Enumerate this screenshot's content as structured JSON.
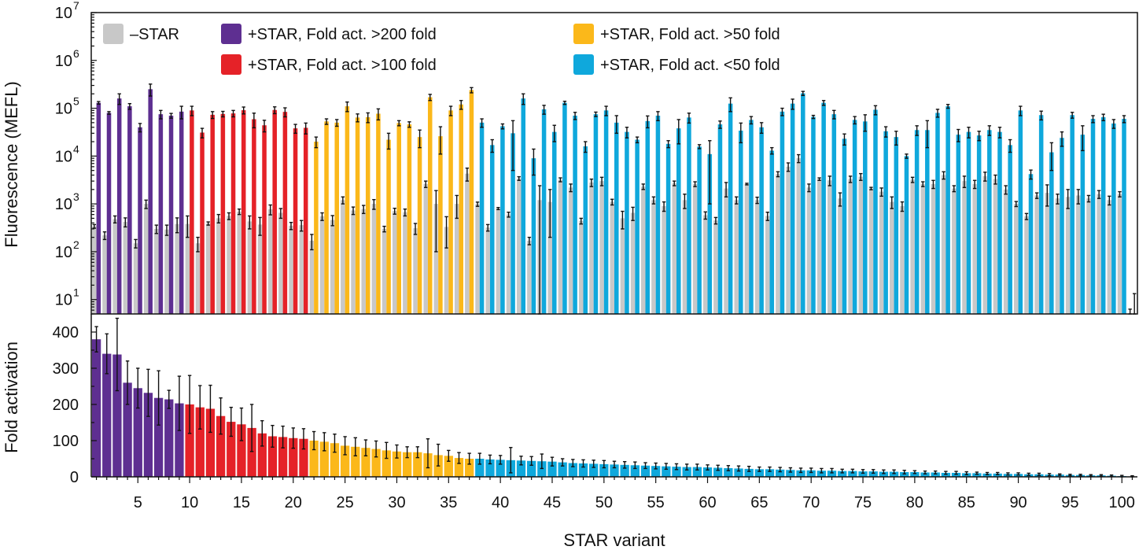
{
  "chart_data": [
    {
      "type": "bar",
      "panel": "top",
      "yscale": "log",
      "ylim": [
        5,
        10000000
      ],
      "ylabel": "Fluorescence (MEFL)",
      "yticks": [
        {
          "base": "10",
          "exp": "1",
          "value": 10
        },
        {
          "base": "10",
          "exp": "2",
          "value": 100
        },
        {
          "base": "10",
          "exp": "3",
          "value": 1000
        },
        {
          "base": "10",
          "exp": "4",
          "value": 10000
        },
        {
          "base": "10",
          "exp": "5",
          "value": 100000
        },
        {
          "base": "10",
          "exp": "6",
          "value": 1000000
        },
        {
          "base": "10",
          "exp": "7",
          "value": 10000000
        }
      ],
      "legend_position": "top",
      "legend": [
        {
          "label": "–STAR",
          "color": "#c8c8c8"
        },
        {
          "label": "+STAR, Fold act. >200 fold",
          "color": "#5e2f91"
        },
        {
          "label": "+STAR, Fold act. >100 fold",
          "color": "#e52228"
        },
        {
          "label": "+STAR, Fold act. >50 fold",
          "color": "#fbb81a"
        },
        {
          "label": "+STAR, Fold act. <50 fold",
          "color": "#0fa8dc"
        }
      ],
      "group_colors": [
        "#5e2f91",
        "#e52228",
        "#fbb81a",
        "#0fa8dc"
      ],
      "minus_color": "#c8c8c8",
      "x": [
        1,
        2,
        3,
        4,
        5,
        6,
        7,
        8,
        9,
        10,
        11,
        12,
        13,
        14,
        15,
        16,
        17,
        18,
        19,
        20,
        21,
        22,
        23,
        24,
        25,
        26,
        27,
        28,
        29,
        30,
        31,
        32,
        33,
        34,
        35,
        36,
        37,
        38,
        39,
        40,
        41,
        42,
        43,
        44,
        45,
        46,
        47,
        48,
        49,
        50,
        51,
        52,
        53,
        54,
        55,
        56,
        57,
        58,
        59,
        60,
        61,
        62,
        63,
        64,
        65,
        66,
        67,
        68,
        69,
        70,
        71,
        72,
        73,
        74,
        75,
        76,
        77,
        78,
        79,
        80,
        81,
        82,
        83,
        84,
        85,
        86,
        87,
        88,
        89,
        90,
        91,
        92,
        93,
        94,
        95,
        96,
        97,
        98,
        99,
        100,
        101
      ],
      "group": [
        0,
        0,
        0,
        0,
        0,
        0,
        0,
        0,
        0,
        1,
        1,
        1,
        1,
        1,
        1,
        1,
        1,
        1,
        1,
        1,
        1,
        2,
        2,
        2,
        2,
        2,
        2,
        2,
        2,
        2,
        2,
        2,
        2,
        2,
        2,
        2,
        2,
        3,
        3,
        3,
        3,
        3,
        3,
        3,
        3,
        3,
        3,
        3,
        3,
        3,
        3,
        3,
        3,
        3,
        3,
        3,
        3,
        3,
        3,
        3,
        3,
        3,
        3,
        3,
        3,
        3,
        3,
        3,
        3,
        3,
        3,
        3,
        3,
        3,
        3,
        3,
        3,
        3,
        3,
        3,
        3,
        3,
        3,
        3,
        3,
        3,
        3,
        3,
        3,
        3,
        3,
        3,
        3,
        3,
        3,
        3,
        3,
        3,
        3,
        3,
        3
      ],
      "series": [
        {
          "name": "–STAR",
          "values": [
            340,
            220,
            480,
            420,
            150,
            1000,
            300,
            290,
            380,
            380,
            150,
            390,
            500,
            560,
            690,
            430,
            370,
            770,
            650,
            350,
            360,
            170,
            550,
            460,
            1200,
            730,
            780,
            1000,
            300,
            710,
            670,
            310,
            2600,
            1000,
            330,
            1000,
            4300,
            990,
            320,
            800,
            600,
            3400,
            170,
            1200,
            1100,
            3200,
            2200,
            440,
            2800,
            3000,
            1100,
            500,
            650,
            2300,
            1200,
            900,
            2700,
            1200,
            2600,
            580,
            450,
            2100,
            1200,
            2600,
            1200,
            560,
            4200,
            6000,
            9000,
            2200,
            3300,
            3100,
            1300,
            3300,
            3700,
            2100,
            1800,
            1100,
            900,
            3200,
            2600,
            2600,
            4000,
            2100,
            3000,
            2600,
            3800,
            3300,
            2000,
            1000,
            550,
            1500,
            1700,
            1300,
            1400,
            1500,
            1300,
            1600,
            1200,
            1600,
            3.8
          ],
          "errors": [
            30,
            40,
            80,
            90,
            30,
            200,
            60,
            70,
            130,
            180,
            50,
            30,
            100,
            90,
            90,
            130,
            150,
            180,
            150,
            60,
            90,
            60,
            100,
            110,
            200,
            130,
            150,
            230,
            40,
            100,
            110,
            80,
            400,
            900,
            210,
            500,
            1300,
            100,
            50,
            40,
            70,
            300,
            30,
            1200,
            900,
            300,
            400,
            60,
            500,
            600,
            150,
            200,
            200,
            300,
            200,
            200,
            300,
            400,
            300,
            100,
            70,
            700,
            200,
            100,
            180,
            110,
            500,
            1200,
            1700,
            400,
            200,
            700,
            400,
            500,
            600,
            120,
            350,
            300,
            200,
            400,
            300,
            500,
            700,
            300,
            800,
            500,
            800,
            700,
            400,
            120,
            80,
            200,
            800,
            300,
            600,
            500,
            200,
            300,
            250,
            200,
            2.5
          ]
        },
        {
          "name": "+STAR",
          "values": [
            130000,
            80000,
            160000,
            110000,
            40000,
            250000,
            75000,
            70000,
            85000,
            90000,
            31000,
            73000,
            76000,
            78000,
            91000,
            59000,
            44000,
            92000,
            84000,
            38000,
            39000,
            20000,
            53000,
            50000,
            110000,
            64000,
            65000,
            77000,
            22000,
            49000,
            46000,
            25000,
            170000,
            26000,
            90000,
            120000,
            240000,
            50000,
            17000,
            42000,
            30000,
            160000,
            9000,
            95000,
            32000,
            130000,
            70000,
            16000,
            75000,
            90000,
            50000,
            32000,
            22000,
            54000,
            70000,
            18000,
            38000,
            64000,
            15800,
            11000,
            46000,
            125000,
            34000,
            57000,
            40000,
            13000,
            85000,
            125000,
            205000,
            66000,
            130000,
            75000,
            23000,
            57000,
            53000,
            93000,
            33000,
            25000,
            10000,
            35000,
            35000,
            80000,
            110000,
            28000,
            32000,
            27000,
            35000,
            32000,
            17000,
            90000,
            4200,
            72000,
            12000,
            24000,
            72000,
            28000,
            60000,
            65000,
            48000,
            60000,
            3.3
          ],
          "errors": [
            8000,
            5000,
            40000,
            15000,
            8000,
            70000,
            15000,
            8000,
            25000,
            20000,
            7000,
            12000,
            10000,
            12000,
            15000,
            20000,
            12000,
            15000,
            18000,
            8000,
            10000,
            5000,
            7000,
            8000,
            25000,
            12000,
            15000,
            20000,
            8000,
            6000,
            6000,
            10000,
            25000,
            15000,
            20000,
            25000,
            30000,
            10000,
            5000,
            5000,
            25000,
            40000,
            5000,
            20000,
            12000,
            10000,
            12000,
            4000,
            8000,
            20000,
            20000,
            8000,
            3000,
            15000,
            15000,
            3000,
            20000,
            15000,
            1500,
            10000,
            8000,
            40000,
            15000,
            10000,
            10000,
            2000,
            15000,
            30000,
            20000,
            5000,
            15000,
            15000,
            6000,
            10000,
            20000,
            20000,
            8000,
            8000,
            1000,
            8000,
            20000,
            15000,
            10000,
            8000,
            8000,
            6000,
            8000,
            8000,
            5000,
            20000,
            900,
            15000,
            7000,
            8000,
            10000,
            15000,
            10000,
            10000,
            10000,
            10000,
            10
          ]
        }
      ]
    },
    {
      "type": "bar",
      "panel": "bottom",
      "ylabel": "Fold activation",
      "xlabel": "STAR variant",
      "ylim": [
        0,
        450
      ],
      "yticks": [
        "0",
        "100",
        "200",
        "300",
        "400"
      ],
      "xticks": [
        "5",
        "10",
        "15",
        "20",
        "25",
        "30",
        "35",
        "40",
        "45",
        "50",
        "55",
        "60",
        "65",
        "70",
        "75",
        "80",
        "85",
        "90",
        "95",
        "100"
      ],
      "x": [
        1,
        2,
        3,
        4,
        5,
        6,
        7,
        8,
        9,
        10,
        11,
        12,
        13,
        14,
        15,
        16,
        17,
        18,
        19,
        20,
        21,
        22,
        23,
        24,
        25,
        26,
        27,
        28,
        29,
        30,
        31,
        32,
        33,
        34,
        35,
        36,
        37,
        38,
        39,
        40,
        41,
        42,
        43,
        44,
        45,
        46,
        47,
        48,
        49,
        50,
        51,
        52,
        53,
        54,
        55,
        56,
        57,
        58,
        59,
        60,
        61,
        62,
        63,
        64,
        65,
        66,
        67,
        68,
        69,
        70,
        71,
        72,
        73,
        74,
        75,
        76,
        77,
        78,
        79,
        80,
        81,
        82,
        83,
        84,
        85,
        86,
        87,
        88,
        89,
        90,
        91,
        92,
        93,
        94,
        95,
        96,
        97,
        98,
        99,
        100,
        101
      ],
      "group": [
        0,
        0,
        0,
        0,
        0,
        0,
        0,
        0,
        0,
        1,
        1,
        1,
        1,
        1,
        1,
        1,
        1,
        1,
        1,
        1,
        1,
        2,
        2,
        2,
        2,
        2,
        2,
        2,
        2,
        2,
        2,
        2,
        2,
        2,
        2,
        2,
        2,
        3,
        3,
        3,
        3,
        3,
        3,
        3,
        3,
        3,
        3,
        3,
        3,
        3,
        3,
        3,
        3,
        3,
        3,
        3,
        3,
        3,
        3,
        3,
        3,
        3,
        3,
        3,
        3,
        3,
        3,
        3,
        3,
        3,
        3,
        3,
        3,
        3,
        3,
        3,
        3,
        3,
        3,
        3,
        3,
        3,
        3,
        3,
        3,
        3,
        3,
        3,
        3,
        3,
        3,
        3,
        3,
        3,
        3,
        3,
        3,
        3,
        3,
        3,
        3
      ],
      "values": [
        380,
        340,
        338,
        260,
        245,
        232,
        218,
        214,
        203,
        200,
        192,
        188,
        168,
        152,
        145,
        135,
        120,
        112,
        110,
        107,
        105,
        100,
        97,
        93,
        86,
        83,
        80,
        77,
        73,
        70,
        68,
        68,
        65,
        60,
        58,
        52,
        50,
        50,
        48,
        47,
        46,
        45,
        44,
        43,
        42,
        40,
        38,
        37,
        36,
        35,
        34,
        33,
        32,
        31,
        30,
        29,
        28,
        27,
        27,
        26,
        25,
        24,
        23,
        22,
        21,
        21,
        20,
        19,
        18,
        18,
        17,
        17,
        16,
        16,
        15,
        15,
        14,
        14,
        13,
        13,
        12,
        12,
        11,
        11,
        10,
        10,
        9,
        9,
        8,
        8,
        7,
        7,
        6,
        6,
        5,
        5,
        4,
        4,
        3,
        2,
        1
      ],
      "errors": [
        35,
        55,
        100,
        60,
        55,
        65,
        75,
        25,
        75,
        80,
        60,
        65,
        50,
        40,
        45,
        65,
        35,
        30,
        30,
        28,
        28,
        25,
        25,
        25,
        25,
        25,
        22,
        22,
        22,
        18,
        15,
        15,
        40,
        30,
        15,
        15,
        15,
        15,
        12,
        12,
        35,
        12,
        12,
        20,
        12,
        10,
        10,
        10,
        10,
        10,
        9,
        9,
        9,
        8,
        8,
        8,
        8,
        8,
        8,
        7,
        7,
        7,
        7,
        7,
        6,
        6,
        6,
        6,
        6,
        6,
        6,
        6,
        5,
        5,
        5,
        5,
        5,
        5,
        5,
        4,
        4,
        4,
        4,
        4,
        4,
        3,
        3,
        3,
        3,
        3,
        3,
        3,
        3,
        2,
        2,
        2,
        2,
        2,
        2,
        2,
        2
      ]
    }
  ]
}
